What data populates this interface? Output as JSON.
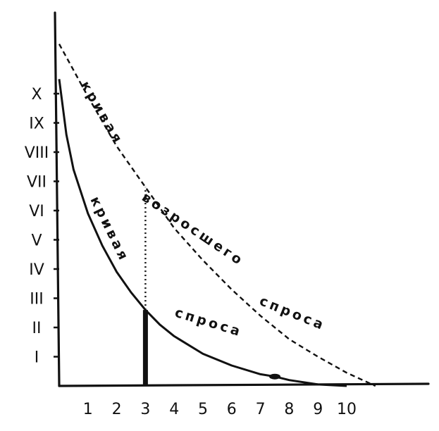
{
  "chart_data": {
    "type": "line",
    "title": "",
    "xlabel": "",
    "ylabel": "",
    "x_ticks": [
      "1",
      "2",
      "3",
      "4",
      "5",
      "6",
      "7",
      "8",
      "9",
      "10"
    ],
    "y_ticks": [
      "I",
      "II",
      "III",
      "IV",
      "V",
      "VI",
      "VII",
      "VIII",
      "IX",
      "X"
    ],
    "xlim": [
      0,
      12.6
    ],
    "ylim": [
      0,
      12
    ],
    "grid": false,
    "series": [
      {
        "label": "кривая спроса",
        "style": "solid",
        "x": [
          0,
          0.25,
          0.5,
          1,
          1.5,
          2,
          2.5,
          3,
          3.5,
          4,
          5,
          6,
          7,
          7.5,
          8,
          9,
          10
        ],
        "y": [
          10.5,
          8.6,
          7.4,
          5.9,
          4.8,
          3.9,
          3.2,
          2.6,
          2.1,
          1.7,
          1.1,
          0.7,
          0.4,
          0.32,
          0.2,
          0.05,
          0
        ]
      },
      {
        "label": "кривая возросшего спроса",
        "style": "dashed",
        "x": [
          0,
          1,
          2,
          3,
          4,
          5,
          6,
          7,
          8,
          9,
          10,
          11
        ],
        "y": [
          11.7,
          9.9,
          8.2,
          6.8,
          5.4,
          4.3,
          3.3,
          2.4,
          1.6,
          1.0,
          0.45,
          0
        ]
      }
    ],
    "annotations": [
      {
        "type": "vertical_dotted",
        "x": 3,
        "y_from": 2.6,
        "y_to": 6.8
      },
      {
        "type": "vertical_bold",
        "x": 3,
        "y_from": 0,
        "y_to": 2.6
      },
      {
        "type": "point",
        "x": 7.5,
        "y": 0.32
      }
    ],
    "curve_labels": {
      "solid_top": "кривая",
      "solid_bottom": "спроса",
      "dashed_top": "кривая",
      "dashed_middle": "возросшего",
      "dashed_bottom": "спроса"
    }
  }
}
